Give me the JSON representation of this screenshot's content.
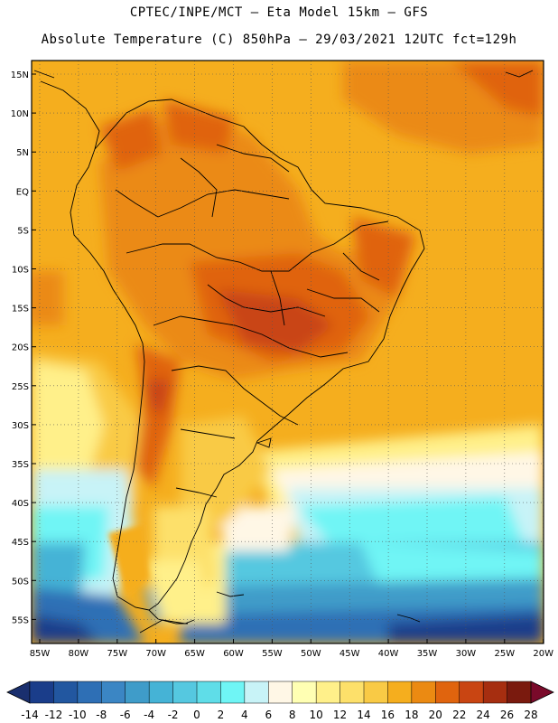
{
  "header": {
    "line1": "CPTEC/INPE/MCT —  Eta Model 15km — GFS",
    "line2": "Absolute Temperature (C) 850hPa — 29/03/2021 12UTC fct=129h"
  },
  "map": {
    "lat_labels": [
      "15N",
      "10N",
      "5N",
      "EQ",
      "5S",
      "10S",
      "15S",
      "20S",
      "25S",
      "30S",
      "35S",
      "40S",
      "45S",
      "50S",
      "55S"
    ],
    "lon_labels": [
      "85W",
      "80W",
      "75W",
      "70W",
      "65W",
      "60W",
      "55W",
      "50W",
      "45W",
      "40W",
      "35W",
      "30W",
      "25W",
      "20W"
    ],
    "gridlines": true
  },
  "colorbar": {
    "labels": [
      "-14",
      "-12",
      "-10",
      "-8",
      "-6",
      "-4",
      "-2",
      "0",
      "2",
      "4",
      "6",
      "8",
      "10",
      "12",
      "14",
      "16",
      "18",
      "20",
      "22",
      "24",
      "26",
      "28"
    ],
    "colors": [
      "#1a3d8a",
      "#2257a0",
      "#2e6fb5",
      "#3b86c4",
      "#3f9cc9",
      "#45b3d6",
      "#55c8e0",
      "#5fdde8",
      "#6ff5f5",
      "#c8f3f7",
      "#fff7e6",
      "#ffffb3",
      "#fff08a",
      "#fde06a",
      "#f9ca45",
      "#f5ae1e",
      "#eb8a12",
      "#e0640e",
      "#c94512",
      "#a62e10",
      "#7a1a0e"
    ],
    "under_color": "#1a2f6e",
    "over_color": "#7a0a2a"
  }
}
